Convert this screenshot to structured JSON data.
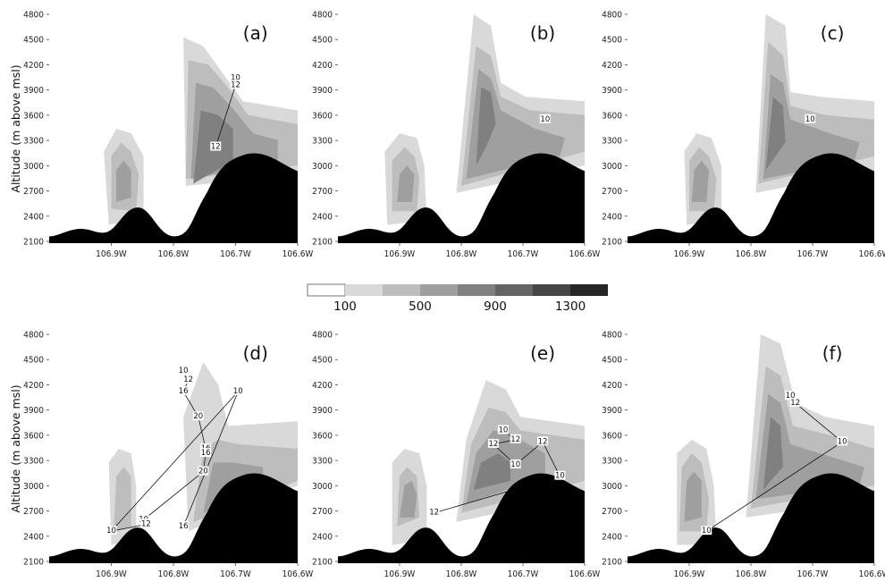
{
  "figure": {
    "ylabel": "Altitude (m above msl)",
    "yticks": [
      "4800",
      "4500",
      "4200",
      "3900",
      "3600",
      "3300",
      "3000",
      "2700",
      "2400",
      "2100"
    ],
    "xticks": [
      "106.9W",
      "106.8W",
      "106.7W",
      "106.6W"
    ],
    "colorbar": {
      "labels": [
        "100",
        "500",
        "900",
        "1300"
      ],
      "colors": [
        "#ffffff",
        "#d9d9d9",
        "#bdbdbd",
        "#9f9f9f",
        "#808080",
        "#646464",
        "#464646",
        "#262626"
      ]
    },
    "colors": {
      "fill1": "#d9d9d9",
      "fill2": "#bdbdbd",
      "fill3": "#9f9f9f",
      "fill4": "#808080",
      "fill5": "#646464",
      "terrain": "#000000"
    }
  },
  "chart_data": {
    "type": "heatmap",
    "ylim": [
      2100,
      4800
    ],
    "xlim": [
      "107.0W",
      "106.6W"
    ],
    "colorbar_levels": [
      100,
      300,
      500,
      700,
      900,
      1100,
      1300
    ],
    "panels": [
      {
        "label": "(a)",
        "contour_labels": [
          "10",
          "12",
          "12"
        ]
      },
      {
        "label": "(b)",
        "contour_labels": [
          "10"
        ]
      },
      {
        "label": "(c)",
        "contour_labels": [
          "10"
        ]
      },
      {
        "label": "(d)",
        "contour_labels": [
          "10",
          "12",
          "16",
          "20",
          "16",
          "16",
          "20",
          "10",
          "12",
          "10",
          "10",
          "16"
        ]
      },
      {
        "label": "(e)",
        "contour_labels": [
          "10",
          "12",
          "12",
          "10",
          "12",
          "10",
          "12"
        ]
      },
      {
        "label": "(f)",
        "contour_labels": [
          "10",
          "12",
          "10",
          "10"
        ]
      }
    ]
  }
}
